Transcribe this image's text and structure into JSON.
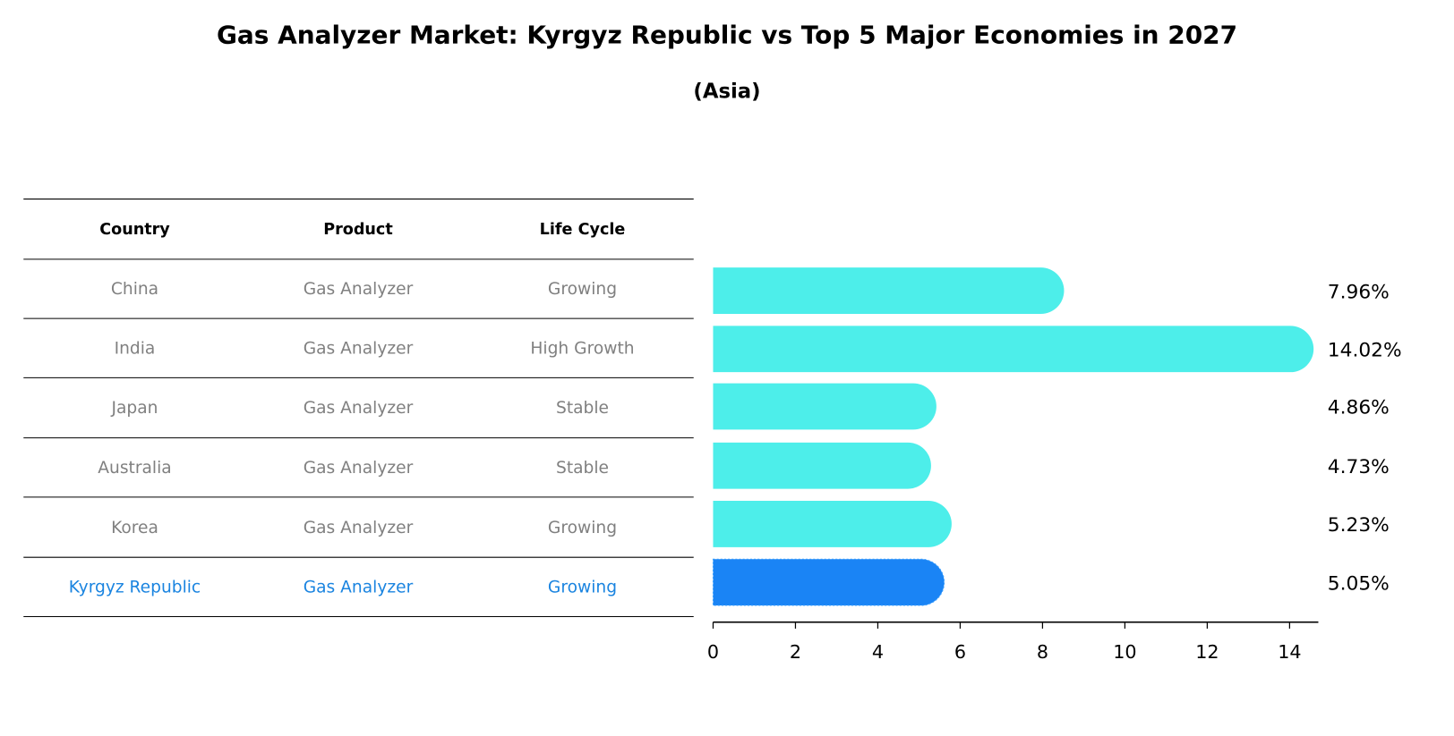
{
  "chart_data": {
    "type": "bar",
    "title": "Gas Analyzer Market: Kyrgyz Republic vs Top 5 Major Economies in 2027",
    "subtitle": "(Asia)",
    "table": {
      "headers": [
        "Country",
        "Product",
        "Life Cycle"
      ],
      "rows": [
        [
          "China",
          "Gas Analyzer",
          "Growing"
        ],
        [
          "India",
          "Gas Analyzer",
          "High Growth"
        ],
        [
          "Japan",
          "Gas Analyzer",
          "Stable"
        ],
        [
          "Australia",
          "Gas Analyzer",
          "Stable"
        ],
        [
          "Korea",
          "Gas Analyzer",
          "Growing"
        ],
        [
          "Kyrgyz Republic",
          "Gas Analyzer",
          "Growing"
        ]
      ],
      "highlight_row": 5
    },
    "categories": [
      "China",
      "India",
      "Japan",
      "Australia",
      "Korea",
      "Kyrgyz Republic"
    ],
    "values": [
      7.96,
      14.02,
      4.86,
      4.73,
      5.23,
      5.05
    ],
    "value_labels": [
      "7.96%",
      "14.02%",
      "4.86%",
      "4.73%",
      "5.23%",
      "5.05%"
    ],
    "xlim": [
      0,
      14.7
    ],
    "xticks": [
      "0",
      "2",
      "4",
      "6",
      "8",
      "10",
      "12",
      "14"
    ],
    "colors": {
      "bar": "#4deeea",
      "highlight": "#1a84f5",
      "text_gray": "#808080",
      "text_highlight": "#1a84e0"
    }
  }
}
